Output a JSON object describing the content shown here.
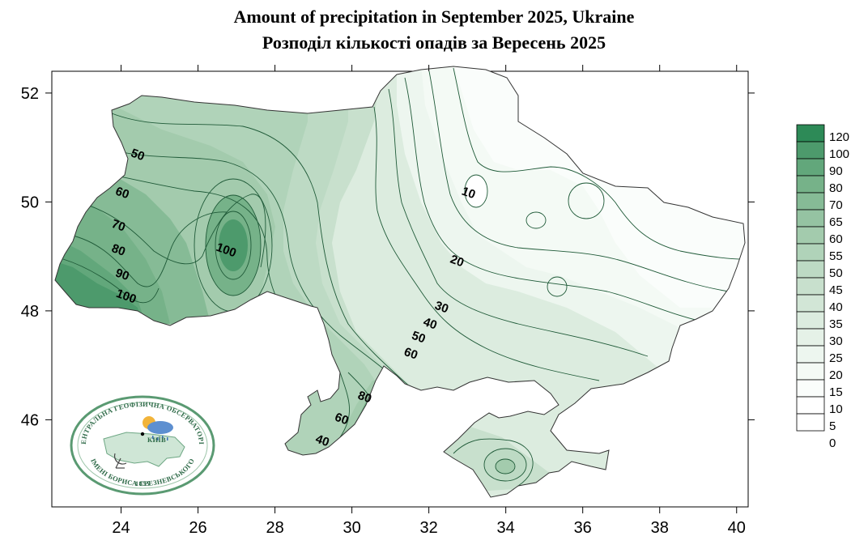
{
  "title_en": "Amount of precipitation in September 2025, Ukraine",
  "title_ua": "Розподіл кількості опадів за Вересень 2025",
  "axes": {
    "x_ticks": [
      "24",
      "26",
      "28",
      "30",
      "32",
      "34",
      "36",
      "38",
      "40"
    ],
    "y_ticks": [
      "52",
      "50",
      "48",
      "46"
    ],
    "x_range": [
      22.2,
      40.3
    ],
    "y_range": [
      44.4,
      52.4
    ]
  },
  "contour_labels": [
    {
      "text": "50",
      "lon": 24.4,
      "lat": 50.8
    },
    {
      "text": "60",
      "lon": 24.0,
      "lat": 50.1
    },
    {
      "text": "70",
      "lon": 23.9,
      "lat": 49.5
    },
    {
      "text": "80",
      "lon": 23.9,
      "lat": 49.05
    },
    {
      "text": "90",
      "lon": 24.0,
      "lat": 48.6
    },
    {
      "text": "100",
      "lon": 24.1,
      "lat": 48.2
    },
    {
      "text": "100",
      "lon": 26.7,
      "lat": 49.05
    },
    {
      "text": "10",
      "lon": 33.0,
      "lat": 50.1
    },
    {
      "text": "20",
      "lon": 32.7,
      "lat": 48.85
    },
    {
      "text": "30",
      "lon": 32.3,
      "lat": 48.0
    },
    {
      "text": "40",
      "lon": 32.0,
      "lat": 47.7
    },
    {
      "text": "50",
      "lon": 31.7,
      "lat": 47.45
    },
    {
      "text": "60",
      "lon": 31.5,
      "lat": 47.15
    },
    {
      "text": "80",
      "lon": 30.3,
      "lat": 46.35
    },
    {
      "text": "60",
      "lon": 29.7,
      "lat": 45.95
    },
    {
      "text": "40",
      "lon": 29.2,
      "lat": 45.55
    }
  ],
  "legend": {
    "levels": [
      "120",
      "100",
      "90",
      "80",
      "70",
      "65",
      "60",
      "55",
      "50",
      "45",
      "40",
      "35",
      "30",
      "25",
      "20",
      "15",
      "10",
      "5",
      "0"
    ],
    "colors": [
      "#2d8a57",
      "#4d9a6c",
      "#62a77b",
      "#76b289",
      "#86bb96",
      "#95c3a2",
      "#a3cbad",
      "#b0d3b9",
      "#bddac4",
      "#c8e0cd",
      "#d2e6d6",
      "#dcecdf",
      "#e5f1e7",
      "#edf6ef",
      "#f4faf5",
      "#fafdfb",
      "#ffffff",
      "#ffffff"
    ]
  },
  "logo": {
    "org_top": "ЦЕНТРАЛЬНА ГЕОФІЗИЧНА ОБСЕРВАТОРІЯ",
    "org_bottom": "ІМЕНІ БОРИСА СРЕЗНЕВСЬКОГО",
    "city": "КИЇВ",
    "year": "1855"
  },
  "colors": {
    "max": "#2d8a57",
    "min": "#ffffff",
    "contour": "#1f5a38"
  }
}
